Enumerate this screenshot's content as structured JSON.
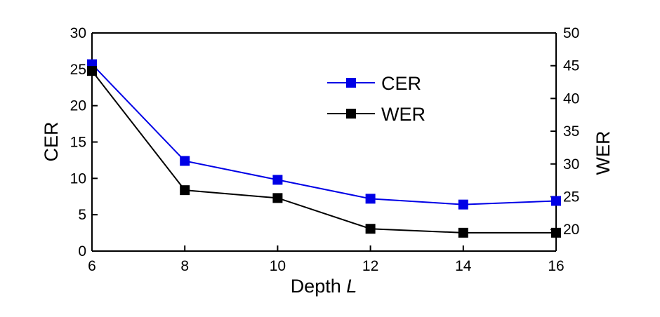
{
  "chart_data": {
    "type": "line",
    "xlabel": "Depth",
    "xlabel_var": "L",
    "ylabel_left": "CER",
    "ylabel_right": "WER",
    "x": [
      6,
      8,
      10,
      12,
      14,
      16
    ],
    "xlim": [
      6,
      16
    ],
    "xticks": [
      6,
      8,
      10,
      12,
      14,
      16
    ],
    "ylim_left": [
      0,
      30
    ],
    "yticks_left": [
      0,
      5,
      10,
      15,
      20,
      25,
      30
    ],
    "ylim_right": [
      16.7,
      50
    ],
    "yticks_right": [
      20,
      25,
      30,
      35,
      40,
      45,
      50
    ],
    "grid": false,
    "legend_position": "top-right",
    "series": [
      {
        "name": "CER",
        "axis": "left",
        "color": "#0000e6",
        "marker": "square",
        "values": [
          25.7,
          12.4,
          9.8,
          7.2,
          6.4,
          6.9
        ]
      },
      {
        "name": "WER",
        "axis": "right",
        "color": "#000000",
        "marker": "square",
        "values": [
          44.2,
          26.0,
          24.8,
          20.1,
          19.5,
          19.5
        ]
      }
    ]
  }
}
